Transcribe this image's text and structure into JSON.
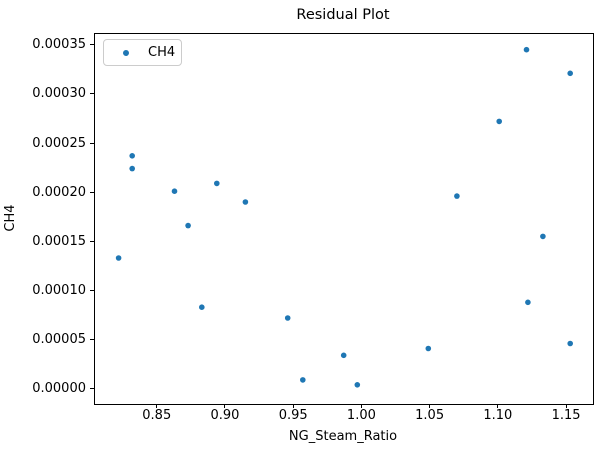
{
  "chart_data": {
    "type": "scatter",
    "title": "Residual Plot",
    "xlabel": "NG_Steam_Ratio",
    "ylabel": "CH4",
    "grid": false,
    "legend": {
      "position": "upper-left",
      "entries": [
        {
          "label": "CH4",
          "color": "#1f77b4"
        }
      ]
    },
    "marker_color": "#1f77b4",
    "xlim": [
      0.804,
      1.169
    ],
    "ylim": [
      -1.45e-05,
      0.000362
    ],
    "xticks": [
      0.85,
      0.9,
      0.95,
      1.0,
      1.05,
      1.1,
      1.15
    ],
    "xtick_labels": [
      "0.85",
      "0.90",
      "0.95",
      "1.00",
      "1.05",
      "1.10",
      "1.15"
    ],
    "yticks": [
      0.0,
      5e-05,
      0.0001,
      0.00015,
      0.0002,
      0.00025,
      0.0003,
      0.00035
    ],
    "ytick_labels": [
      "0.00000",
      "0.00005",
      "0.00010",
      "0.00015",
      "0.00020",
      "0.00025",
      "0.00030",
      "0.00035"
    ],
    "series": [
      {
        "name": "CH4",
        "color": "#1f77b4",
        "marker": "circle",
        "points": [
          [
            0.822,
            0.000133
          ],
          [
            0.832,
            0.000237
          ],
          [
            0.832,
            0.000224
          ],
          [
            0.863,
            0.000201
          ],
          [
            0.873,
            0.000166
          ],
          [
            0.883,
            8.3e-05
          ],
          [
            0.894,
            0.000209
          ],
          [
            0.915,
            0.00019
          ],
          [
            0.946,
            7.2e-05
          ],
          [
            0.957,
            9e-06
          ],
          [
            0.987,
            3.4e-05
          ],
          [
            0.997,
            4e-06
          ],
          [
            1.049,
            4.1e-05
          ],
          [
            1.07,
            0.000196
          ],
          [
            1.101,
            0.000272
          ],
          [
            1.121,
            0.000345
          ],
          [
            1.122,
            8.8e-05
          ],
          [
            1.133,
            0.000155
          ],
          [
            1.153,
            0.000321
          ],
          [
            1.153,
            4.6e-05
          ]
        ]
      }
    ]
  }
}
